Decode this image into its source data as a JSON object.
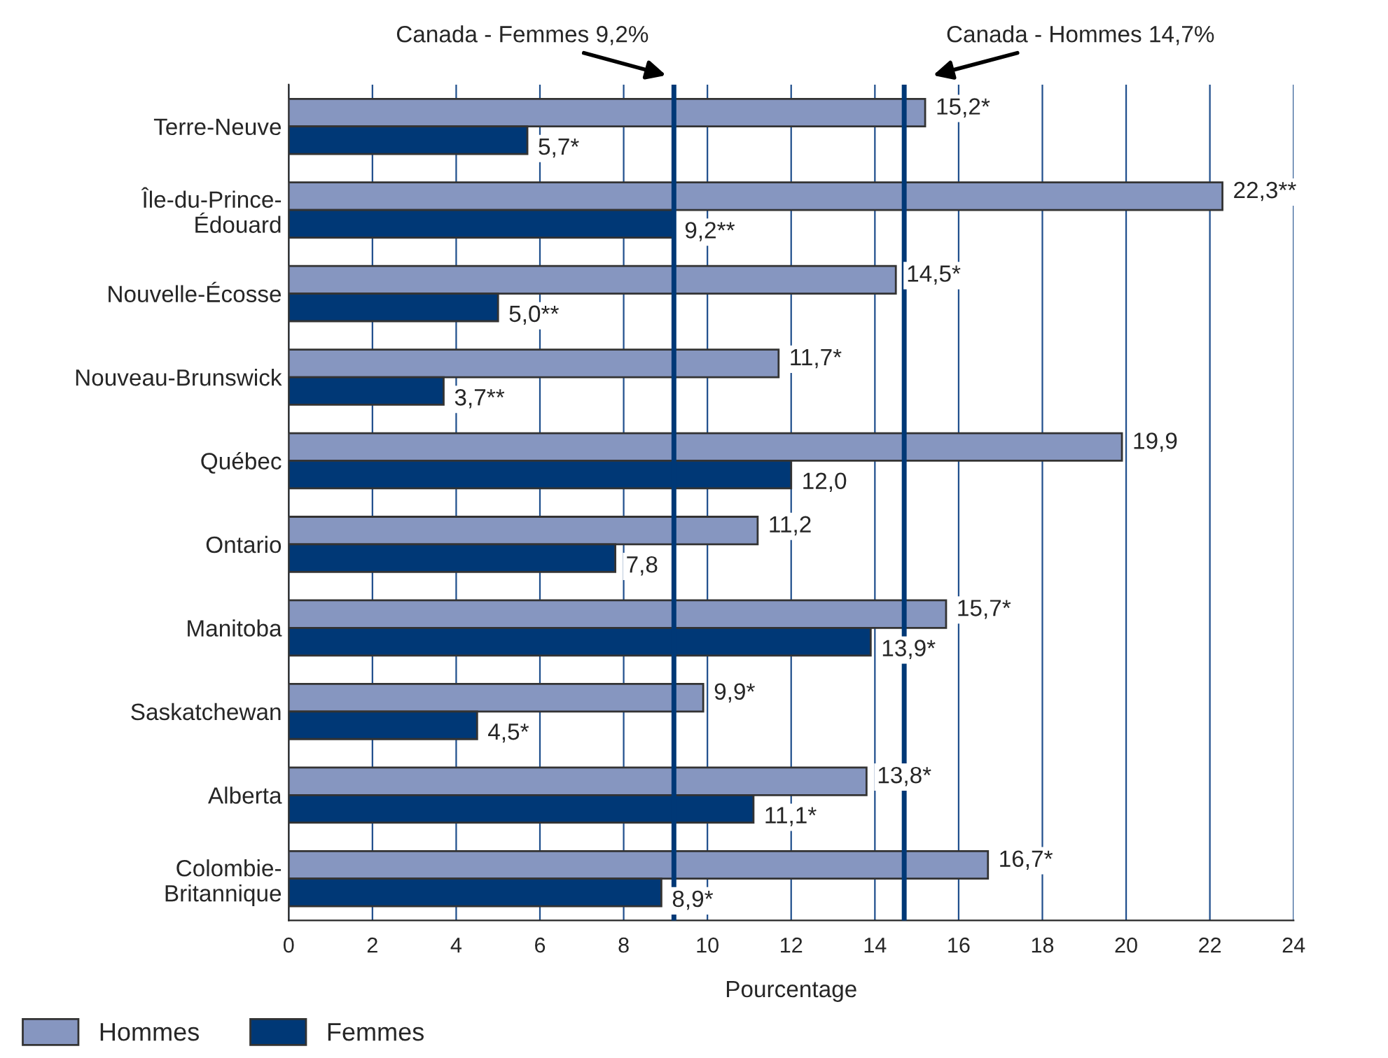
{
  "chart_data": {
    "type": "bar",
    "orientation": "horizontal",
    "xlabel": "Pourcentage",
    "categories": [
      "Terre-Neuve",
      "Île-du-Prince-\nÉdouard",
      "Nouvelle-Écosse",
      "Nouveau-Brunswick",
      "Québec",
      "Ontario",
      "Manitoba",
      "Saskatchewan",
      "Alberta",
      "Colombie-\nBritannique"
    ],
    "series": [
      {
        "name": "Hommes",
        "color": "#8696c0",
        "values": [
          15.2,
          22.3,
          14.5,
          11.7,
          19.9,
          11.2,
          15.7,
          9.9,
          13.8,
          16.7
        ],
        "value_labels": [
          "15,2*",
          "22,3**",
          "14,5*",
          "11,7*",
          "19,9",
          "11,2",
          "15,7*",
          "9,9*",
          "13,8*",
          "16,7*"
        ]
      },
      {
        "name": "Femmes",
        "color": "#003876",
        "values": [
          5.7,
          9.2,
          5.0,
          3.7,
          12.0,
          7.8,
          13.9,
          4.5,
          11.1,
          8.9
        ],
        "value_labels": [
          "5,7*",
          "9,2**",
          "5,0**",
          "3,7**",
          "12,0",
          "7,8",
          "13,9*",
          "4,5*",
          "11,1*",
          "8,9*"
        ]
      }
    ],
    "xlim": [
      0,
      24
    ],
    "xticks": [
      0,
      2,
      4,
      6,
      8,
      10,
      12,
      14,
      16,
      18,
      20,
      22,
      24
    ],
    "grid": "x",
    "legend": "bottom left",
    "ref_lines": [
      {
        "axis": "x",
        "value": 9.2,
        "label": "Canada - Femmes 9,2%",
        "color": "#003876"
      },
      {
        "axis": "x",
        "value": 14.7,
        "label": "Canada - Hommes 14,7%",
        "color": "#003876"
      }
    ]
  }
}
